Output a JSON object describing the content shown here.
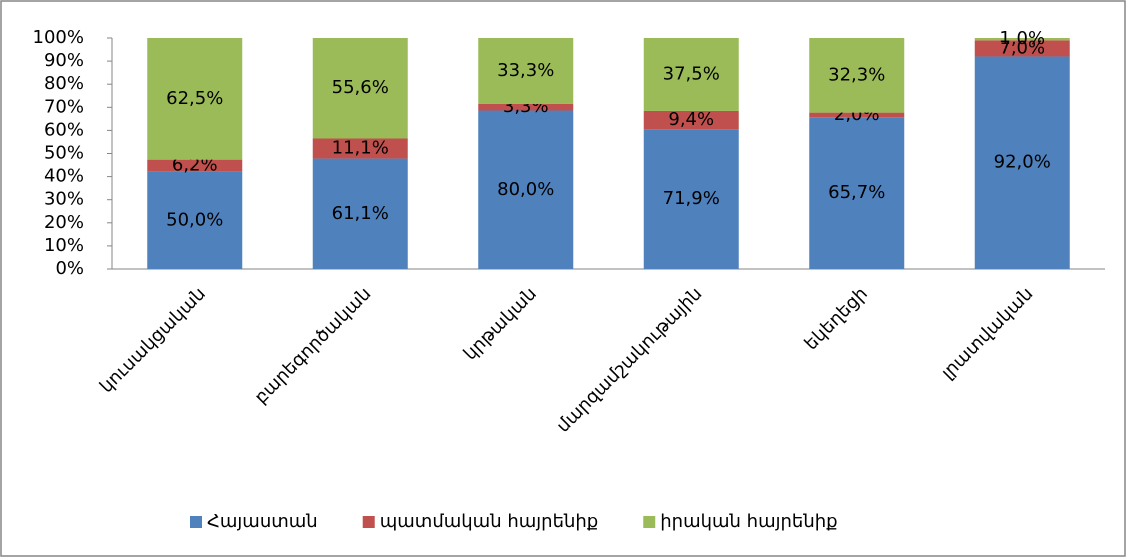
{
  "chart_data": {
    "type": "bar",
    "stacking": "percent",
    "categories": [
      "կուսակցական",
      "բարեգործական",
      "կրթական",
      "մարզամշակութային",
      "եկեղեցի",
      "լրատվական"
    ],
    "series": [
      {
        "name": "Հայաստան",
        "color": "#4f81bd",
        "values": [
          50.0,
          61.1,
          80.0,
          71.9,
          65.7,
          92.0
        ],
        "value_labels": [
          "50,0%",
          "61,1%",
          "80,0%",
          "71,9%",
          "65,7%",
          "92,0%"
        ]
      },
      {
        "name": "պատմական հայրենիք",
        "color": "#c0504d",
        "values": [
          6.2,
          11.1,
          3.3,
          9.4,
          2.0,
          7.0
        ],
        "value_labels": [
          "6,2%",
          "11,1%",
          "3,3%",
          "9,4%",
          "2,0%",
          "7,0%"
        ]
      },
      {
        "name": "իրական հայրենիք",
        "color": "#9bbb59",
        "values": [
          62.5,
          55.6,
          33.3,
          37.5,
          32.3,
          1.0
        ],
        "value_labels": [
          "62,5%",
          "55,6%",
          "33,3%",
          "37,5%",
          "32,3%",
          "1,0%"
        ]
      }
    ],
    "ylim": [
      0,
      100
    ],
    "yticks": [
      {
        "value": 0,
        "label": "0%"
      },
      {
        "value": 10,
        "label": "10%"
      },
      {
        "value": 20,
        "label": "20%"
      },
      {
        "value": 30,
        "label": "30%"
      },
      {
        "value": 40,
        "label": "40%"
      },
      {
        "value": 50,
        "label": "50%"
      },
      {
        "value": 60,
        "label": "60%"
      },
      {
        "value": 70,
        "label": "70%"
      },
      {
        "value": 80,
        "label": "80%"
      },
      {
        "value": 90,
        "label": "90%"
      },
      {
        "value": 100,
        "label": "100%"
      }
    ],
    "legend": "bottom"
  }
}
